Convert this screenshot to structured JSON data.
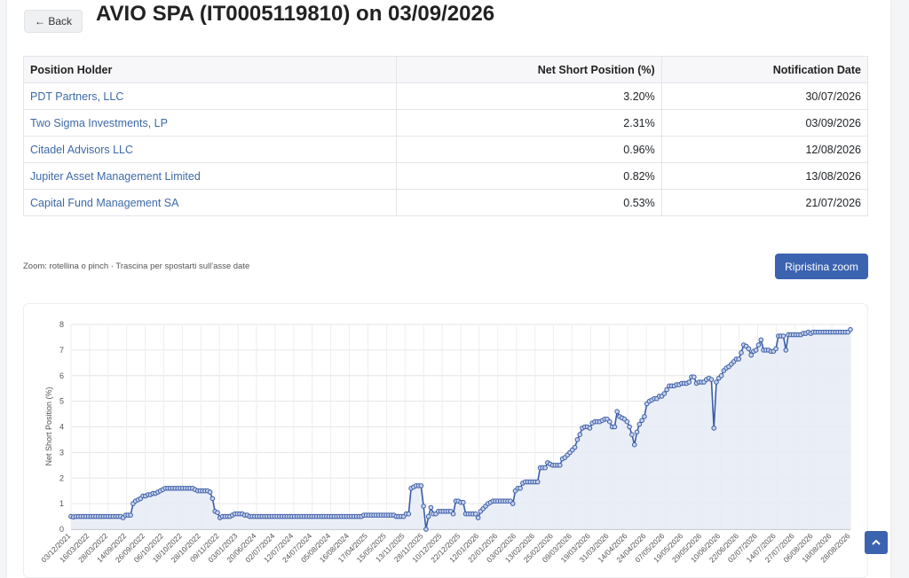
{
  "header": {
    "back_label": "← Back",
    "title": "AVIO SPA (IT0005119810) on 03/09/2026"
  },
  "table": {
    "columns": [
      "Position Holder",
      "Net Short Position (%)",
      "Notification Date"
    ],
    "rows": [
      {
        "holder": "PDT Partners, LLC",
        "position": "3.20%",
        "date": "30/07/2026"
      },
      {
        "holder": "Two Sigma Investments, LP",
        "position": "2.31%",
        "date": "03/09/2026"
      },
      {
        "holder": "Citadel Advisors LLC",
        "position": "0.96%",
        "date": "12/08/2026"
      },
      {
        "holder": "Jupiter Asset Management Limited",
        "position": "0.82%",
        "date": "13/08/2026"
      },
      {
        "holder": "Capital Fund Management SA",
        "position": "0.53%",
        "date": "21/07/2026"
      }
    ]
  },
  "controls": {
    "zoom_hint": "Zoom: rotellina o pinch · Trascina per spostarti sull'asse date",
    "reset_label": "Ripristina zoom"
  },
  "colors": {
    "accent": "#3c63b0",
    "line": "#3a5ca8",
    "fill": "#e6ebf5",
    "link": "#3d6aa8"
  },
  "icons": {
    "scroll_top": "chevron-up-icon"
  },
  "chart_data": {
    "type": "area",
    "ylabel": "Net Short Position (%)",
    "ylim": [
      0,
      8
    ],
    "yticks": [
      0,
      1,
      2,
      3,
      4,
      5,
      6,
      7,
      8
    ],
    "grid": true,
    "x_tick_labels": [
      "03/12/2021",
      "16/03/2022",
      "28/03/2022",
      "14/09/2022",
      "26/09/2022",
      "06/10/2022",
      "18/10/2022",
      "28/10/2022",
      "09/11/2022",
      "03/01/2023",
      "20/06/2024",
      "02/07/2024",
      "12/07/2024",
      "24/07/2024",
      "05/08/2024",
      "16/08/2024",
      "17/04/2025",
      "15/05/2025",
      "13/11/2025",
      "28/11/2025",
      "10/12/2025",
      "22/12/2025",
      "12/01/2026",
      "22/01/2026",
      "03/02/2026",
      "13/02/2026",
      "25/02/2026",
      "09/03/2026",
      "19/03/2026",
      "31/03/2026",
      "14/04/2026",
      "24/04/2026",
      "07/05/2026",
      "19/05/2026",
      "29/05/2026",
      "10/06/2026",
      "22/06/2026",
      "02/07/2026",
      "14/07/2026",
      "27/07/2026",
      "06/08/2026",
      "18/08/2026",
      "28/08/2026"
    ],
    "series": [
      {
        "values": [
          0.5,
          0.48,
          0.5,
          0.5,
          0.5,
          0.5,
          0.5,
          0.5,
          0.5,
          0.5,
          0.5,
          0.5,
          0.5,
          0.5,
          0.5,
          0.5,
          0.5,
          0.5,
          0.5,
          0.5,
          0.5,
          0.45,
          0.55,
          0.55,
          0.55,
          1.0,
          1.1,
          1.15,
          1.2,
          1.3,
          1.3,
          1.35,
          1.35,
          1.4,
          1.4,
          1.45,
          1.5,
          1.55,
          1.6,
          1.6,
          1.6,
          1.6,
          1.6,
          1.6,
          1.6,
          1.6,
          1.6,
          1.6,
          1.6,
          1.6,
          1.55,
          1.5,
          1.5,
          1.5,
          1.5,
          1.5,
          1.45,
          1.2,
          0.7,
          0.65,
          0.45,
          0.5,
          0.5,
          0.5,
          0.5,
          0.55,
          0.6,
          0.6,
          0.6,
          0.6,
          0.55,
          0.55,
          0.5,
          0.5,
          0.5,
          0.5,
          0.5,
          0.5,
          0.5,
          0.5,
          0.5,
          0.5,
          0.5,
          0.5,
          0.5,
          0.5,
          0.5,
          0.5,
          0.5,
          0.5,
          0.5,
          0.5,
          0.5,
          0.5,
          0.5,
          0.5,
          0.5,
          0.5,
          0.5,
          0.5,
          0.5,
          0.5,
          0.5,
          0.5,
          0.5,
          0.5,
          0.5,
          0.5,
          0.5,
          0.5,
          0.5,
          0.5,
          0.5,
          0.5,
          0.5,
          0.5,
          0.5,
          0.5,
          0.55,
          0.55,
          0.55,
          0.55,
          0.55,
          0.55,
          0.55,
          0.55,
          0.55,
          0.55,
          0.55,
          0.55,
          0.55,
          0.5,
          0.5,
          0.5,
          0.5,
          0.6,
          0.6,
          1.6,
          1.65,
          1.7,
          1.7,
          1.7,
          0.9,
          0.0,
          0.5,
          0.85,
          0.6,
          0.6,
          0.7,
          0.7,
          0.7,
          0.7,
          0.7,
          0.7,
          0.6,
          1.1,
          1.1,
          1.05,
          1.05,
          0.6,
          0.6,
          0.6,
          0.6,
          0.6,
          0.45,
          0.7,
          0.8,
          0.9,
          1.0,
          1.05,
          1.1,
          1.1,
          1.1,
          1.1,
          1.1,
          1.1,
          1.1,
          1.1,
          1.0,
          1.5,
          1.6,
          1.6,
          1.8,
          1.85,
          1.85,
          1.85,
          1.85,
          1.85,
          1.85,
          2.4,
          2.4,
          2.4,
          2.6,
          2.55,
          2.5,
          2.5,
          2.5,
          2.5,
          2.75,
          2.8,
          2.9,
          3.0,
          3.1,
          3.2,
          3.5,
          3.7,
          3.95,
          4.0,
          4.0,
          3.95,
          4.15,
          4.2,
          4.2,
          4.2,
          4.25,
          4.3,
          4.3,
          4.2,
          4.0,
          4.0,
          4.6,
          4.4,
          4.35,
          4.3,
          4.2,
          4.0,
          3.7,
          3.3,
          3.8,
          4.1,
          4.25,
          4.4,
          4.9,
          5.0,
          5.05,
          5.1,
          5.1,
          5.2,
          5.2,
          5.3,
          5.45,
          5.6,
          5.6,
          5.6,
          5.65,
          5.65,
          5.7,
          5.7,
          5.7,
          5.75,
          5.95,
          5.95,
          5.7,
          5.75,
          5.75,
          5.75,
          5.85,
          5.9,
          5.85,
          3.95,
          5.75,
          5.9,
          6.0,
          6.2,
          6.3,
          6.35,
          6.45,
          6.55,
          6.65,
          6.65,
          6.9,
          7.2,
          7.15,
          7.05,
          6.8,
          6.95,
          7.0,
          7.2,
          7.4,
          7.0,
          7.0,
          7.0,
          6.95,
          6.95,
          7.05,
          7.55,
          7.55,
          7.55,
          7.0,
          7.6,
          7.6,
          7.6,
          7.6,
          7.6,
          7.6,
          7.65,
          7.65,
          7.7,
          7.65,
          7.7,
          7.7,
          7.7,
          7.7,
          7.7,
          7.7,
          7.7,
          7.7,
          7.7,
          7.7,
          7.7,
          7.7,
          7.7,
          7.7,
          7.7,
          7.8
        ]
      }
    ]
  }
}
